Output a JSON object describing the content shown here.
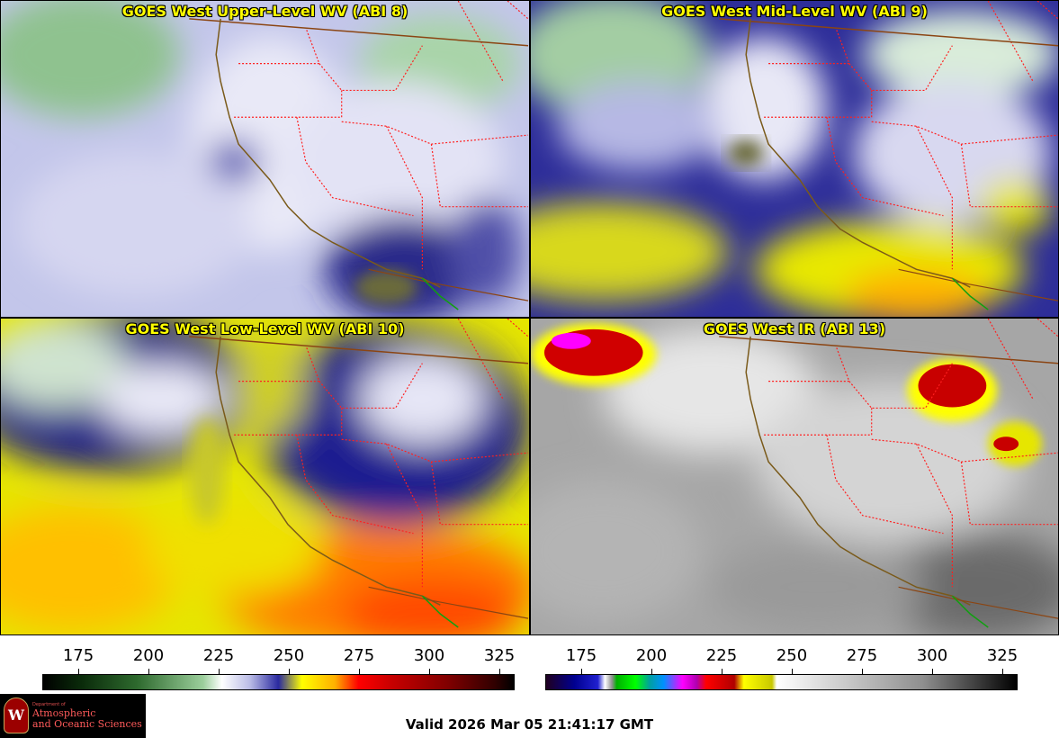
{
  "panels": [
    {
      "id": "upper",
      "title": "GOES West Upper-Level WV (ABI 8)"
    },
    {
      "id": "mid",
      "title": "GOES West Mid-Level WV (ABI 9)"
    },
    {
      "id": "low",
      "title": "GOES West Low-Level WV (ABI 10)"
    },
    {
      "id": "ir",
      "title": "GOES West IR (ABI 13)"
    }
  ],
  "scales": [
    {
      "id": "wv-scale",
      "ticks": [
        "175",
        "200",
        "225",
        "250",
        "275",
        "300",
        "325"
      ]
    },
    {
      "id": "ir-scale",
      "ticks": [
        "175",
        "200",
        "225",
        "250",
        "275",
        "300",
        "325"
      ]
    }
  ],
  "logo": {
    "line1": "Department of",
    "line2": "Atmospheric",
    "line3": "and Oceanic Sciences",
    "seal_letter": "W"
  },
  "footer": {
    "valid": "Valid 2026 Mar 05 21:41:17 GMT"
  },
  "colors": {
    "title": "#ffff00",
    "state_borders": "#ff2020",
    "coastline": "#7a5a1a",
    "intl_border": "#8b4513",
    "mexico_border": "#10a010"
  }
}
